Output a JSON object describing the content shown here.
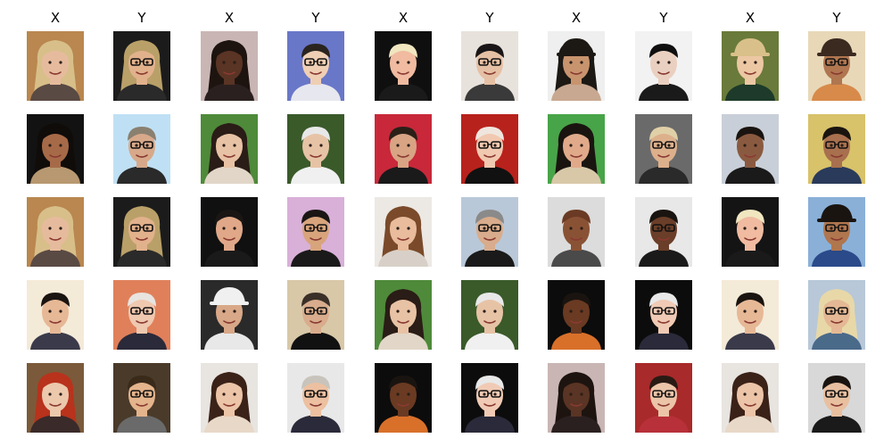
{
  "columns": [
    "X",
    "Y",
    "X",
    "Y",
    "X",
    "Y",
    "X",
    "Y",
    "X",
    "Y"
  ],
  "rows": [
    [
      {
        "bg": "#b9874f",
        "skin": "#e6bb9d",
        "hair": "#d8bf8a",
        "shirt": "#5a4a44",
        "style": "long",
        "glasses": false,
        "hat": false
      },
      {
        "bg": "#1b1b1b",
        "skin": "#e1b18c",
        "hair": "#b9a068",
        "shirt": "#2a2a2a",
        "style": "long",
        "glasses": true,
        "hat": false
      },
      {
        "bg": "#c9b6b4",
        "skin": "#5a3424",
        "hair": "#1d1410",
        "shirt": "#2b2020",
        "style": "long",
        "glasses": false,
        "hat": false
      },
      {
        "bg": "#6977c8",
        "skin": "#efcfb4",
        "hair": "#2a2420",
        "shirt": "#e7e7ef",
        "style": "short",
        "glasses": true,
        "hat": false
      },
      {
        "bg": "#0f0f0f",
        "skin": "#f0bba0",
        "hair": "#f0e6c0",
        "shirt": "#1a1a1a",
        "style": "short",
        "glasses": false,
        "hat": false
      },
      {
        "bg": "#e8e2dc",
        "skin": "#e6c0a4",
        "hair": "#1a1618",
        "shirt": "#3a3a3a",
        "style": "short",
        "glasses": true,
        "hat": false
      },
      {
        "bg": "#efefef",
        "skin": "#c8946e",
        "hair": "#1c1814",
        "shirt": "#c8a890",
        "style": "long",
        "glasses": false,
        "hat": true
      },
      {
        "bg": "#f2f2f2",
        "skin": "#ead0c0",
        "hair": "#0f0f0f",
        "shirt": "#1a1a1a",
        "style": "short",
        "glasses": false,
        "hat": false
      },
      {
        "bg": "#6a7a3a",
        "skin": "#ecc7a3",
        "hair": "#d9c08a",
        "shirt": "#1d3a2a",
        "style": "short",
        "glasses": false,
        "hat": true
      },
      {
        "bg": "#e8d8b8",
        "skin": "#b07650",
        "hair": "#3a2a20",
        "shirt": "#d88a4a",
        "style": "short",
        "glasses": true,
        "hat": true
      }
    ],
    [
      {
        "bg": "#121212",
        "skin": "#a66a48",
        "hair": "#0f0c0a",
        "shirt": "#b79870",
        "style": "long",
        "glasses": false,
        "hat": false
      },
      {
        "bg": "#bfe0f4",
        "skin": "#d7a98a",
        "hair": "#8a8070",
        "shirt": "#2a2a2a",
        "style": "short",
        "glasses": true,
        "hat": false
      },
      {
        "bg": "#4e8a3a",
        "skin": "#e8c2a4",
        "hair": "#2a1c16",
        "shirt": "#e2d6c8",
        "style": "long",
        "glasses": false,
        "hat": false
      },
      {
        "bg": "#3a5a2a",
        "skin": "#e7c3a6",
        "hair": "#e8e8e8",
        "shirt": "#f0f0f0",
        "style": "short",
        "glasses": false,
        "hat": false
      },
      {
        "bg": "#c8283a",
        "skin": "#d8a484",
        "hair": "#2a2018",
        "shirt": "#1a1a1a",
        "style": "short",
        "glasses": false,
        "hat": false
      },
      {
        "bg": "#b8221c",
        "skin": "#f1c8b0",
        "hair": "#efe6de",
        "shirt": "#111111",
        "style": "short",
        "glasses": true,
        "hat": false
      },
      {
        "bg": "#48a448",
        "skin": "#e0aa8a",
        "hair": "#1a1410",
        "shirt": "#d8c8a8",
        "style": "long",
        "glasses": false,
        "hat": false
      },
      {
        "bg": "#6a6a6a",
        "skin": "#ddb08c",
        "hair": "#e0d0a8",
        "shirt": "#2a2a2a",
        "style": "short",
        "glasses": true,
        "hat": false
      },
      {
        "bg": "#c9cfd8",
        "skin": "#8a5a40",
        "hair": "#1a1410",
        "shirt": "#1a1a1a",
        "style": "short",
        "glasses": false,
        "hat": false
      },
      {
        "bg": "#d8c26a",
        "skin": "#a8704e",
        "hair": "#1a1410",
        "shirt": "#2a3a5a",
        "style": "short",
        "glasses": true,
        "hat": false
      }
    ],
    [
      {
        "bg": "#b9874f",
        "skin": "#e6bb9d",
        "hair": "#d8bf8a",
        "shirt": "#5a4a44",
        "style": "long",
        "glasses": false,
        "hat": false
      },
      {
        "bg": "#1b1b1b",
        "skin": "#e1b18c",
        "hair": "#b9a068",
        "shirt": "#2a2a2a",
        "style": "long",
        "glasses": true,
        "hat": false
      },
      {
        "bg": "#101010",
        "skin": "#e0a888",
        "hair": "#1a1614",
        "shirt": "#1a1a1a",
        "style": "short",
        "glasses": false,
        "hat": false
      },
      {
        "bg": "#d8b0d8",
        "skin": "#d8a47c",
        "hair": "#1a1614",
        "shirt": "#1a1a1a",
        "style": "short",
        "glasses": true,
        "hat": false
      },
      {
        "bg": "#ece8e4",
        "skin": "#e8bc9c",
        "hair": "#7a4a2a",
        "shirt": "#d8d0c8",
        "style": "long",
        "glasses": false,
        "hat": false
      },
      {
        "bg": "#b9c8d8",
        "skin": "#d8ac8c",
        "hair": "#8a8a8a",
        "shirt": "#1a1a1a",
        "style": "short",
        "glasses": true,
        "hat": false
      },
      {
        "bg": "#dcdcdc",
        "skin": "#8a5234",
        "hair": "#6a3a24",
        "shirt": "#4a4a4a",
        "style": "short",
        "glasses": false,
        "hat": false
      },
      {
        "bg": "#e8e8e8",
        "skin": "#6a3e28",
        "hair": "#1a1410",
        "shirt": "#1a1a1a",
        "style": "short",
        "glasses": true,
        "hat": false
      },
      {
        "bg": "#141414",
        "skin": "#f0bba0",
        "hair": "#f0e6c0",
        "shirt": "#1a1a1a",
        "style": "short",
        "glasses": false,
        "hat": false
      },
      {
        "bg": "#8ab0d8",
        "skin": "#b0764e",
        "hair": "#1a1410",
        "shirt": "#2a4a8a",
        "style": "short",
        "glasses": true,
        "hat": true
      }
    ],
    [
      {
        "bg": "#f4ead8",
        "skin": "#e6b896",
        "hair": "#1a1410",
        "shirt": "#3a3a4a",
        "style": "short",
        "glasses": false,
        "hat": false
      },
      {
        "bg": "#e0805a",
        "skin": "#efc8b0",
        "hair": "#e8e4e0",
        "shirt": "#2a2a3a",
        "style": "short",
        "glasses": true,
        "hat": false
      },
      {
        "bg": "#2a2a2a",
        "skin": "#d8a888",
        "hair": "#f0f0f0",
        "shirt": "#e8e8e8",
        "style": "short",
        "glasses": false,
        "hat": true
      },
      {
        "bg": "#d8c8a8",
        "skin": "#d8ac8c",
        "hair": "#3a3028",
        "shirt": "#111111",
        "style": "short",
        "glasses": true,
        "hat": false
      },
      {
        "bg": "#4e8a3a",
        "skin": "#e8c2a4",
        "hair": "#2a1c16",
        "shirt": "#e2d6c8",
        "style": "long",
        "glasses": false,
        "hat": false
      },
      {
        "bg": "#3a5a2a",
        "skin": "#e7c3a6",
        "hair": "#e8e8e8",
        "shirt": "#f0f0f0",
        "style": "short",
        "glasses": false,
        "hat": false
      },
      {
        "bg": "#0c0c0c",
        "skin": "#6a3a22",
        "hair": "#1a1410",
        "shirt": "#d8702a",
        "style": "short",
        "glasses": false,
        "hat": false
      },
      {
        "bg": "#0c0c0c",
        "skin": "#f0cab4",
        "hair": "#e8e8e8",
        "shirt": "#2a2a3a",
        "style": "short",
        "glasses": true,
        "hat": false
      },
      {
        "bg": "#f4ead8",
        "skin": "#e6b896",
        "hair": "#1a1410",
        "shirt": "#3a3a4a",
        "style": "short",
        "glasses": false,
        "hat": false
      },
      {
        "bg": "#b8c8d8",
        "skin": "#e4b894",
        "hair": "#e8d8a8",
        "shirt": "#4a6a8a",
        "style": "long",
        "glasses": true,
        "hat": false
      }
    ],
    [
      {
        "bg": "#7a5a3a",
        "skin": "#ecc8ac",
        "hair": "#b8321c",
        "shirt": "#3a2a2a",
        "style": "long",
        "glasses": false,
        "hat": false
      },
      {
        "bg": "#4a3a2a",
        "skin": "#e4b48c",
        "hair": "#3a2a1a",
        "shirt": "#6a6a6a",
        "style": "short",
        "glasses": true,
        "hat": false
      },
      {
        "bg": "#e8e4e0",
        "skin": "#ecc4a8",
        "hair": "#3a2218",
        "shirt": "#e8d8c8",
        "style": "long",
        "glasses": false,
        "hat": false
      },
      {
        "bg": "#e8e8e8",
        "skin": "#ecc0a0",
        "hair": "#c8c4bc",
        "shirt": "#2a2a3a",
        "style": "short",
        "glasses": true,
        "hat": false
      },
      {
        "bg": "#0c0c0c",
        "skin": "#6a3a22",
        "hair": "#1a1410",
        "shirt": "#d8702a",
        "style": "short",
        "glasses": false,
        "hat": false
      },
      {
        "bg": "#0c0c0c",
        "skin": "#f0cab4",
        "hair": "#e8e8e8",
        "shirt": "#2a2a3a",
        "style": "short",
        "glasses": true,
        "hat": false
      },
      {
        "bg": "#c9b6b4",
        "skin": "#5a3424",
        "hair": "#1d1410",
        "shirt": "#2b2020",
        "style": "long",
        "glasses": false,
        "hat": false
      },
      {
        "bg": "#a82a2a",
        "skin": "#ecc4a8",
        "hair": "#2a1a14",
        "shirt": "#b8303a",
        "style": "short",
        "glasses": true,
        "hat": false
      },
      {
        "bg": "#e8e4e0",
        "skin": "#ecc4a8",
        "hair": "#3a2218",
        "shirt": "#e8d8c8",
        "style": "long",
        "glasses": false,
        "hat": false
      },
      {
        "bg": "#d8d8d8",
        "skin": "#e8c0a0",
        "hair": "#1a1410",
        "shirt": "#1a1a1a",
        "style": "short",
        "glasses": true,
        "hat": false
      }
    ]
  ]
}
